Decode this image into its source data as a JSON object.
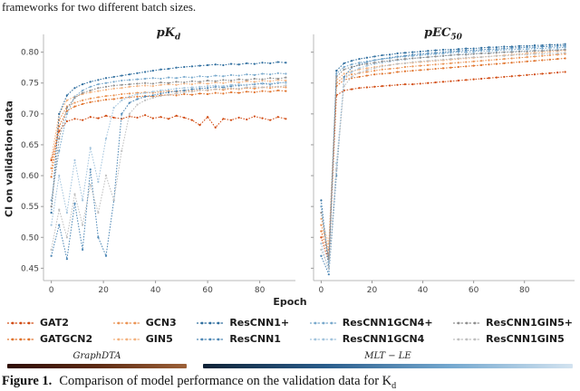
{
  "page": {
    "top_text": "frameworks for two different batch sizes.",
    "caption": {
      "label": "Figure 1.",
      "text": "Comparison of model performance on the validation data for K",
      "text_sub": "d"
    }
  },
  "groups": [
    {
      "name": "GraphDTA",
      "bar_colors": [
        "#2e0d04",
        "#9c6038"
      ]
    },
    {
      "name": "MLT − LE",
      "bar_colors": [
        "#0e2236",
        "#d3e3f0"
      ]
    }
  ],
  "chart_data": [
    {
      "type": "scatter",
      "title": "pK_d",
      "title_main": "pK",
      "title_sub": "d",
      "xlabel": "Epoch",
      "ylabel": "CI on validation data",
      "xlim": [
        -3,
        93
      ],
      "ylim": [
        0.43,
        0.82
      ],
      "xticks": [
        0,
        20,
        40,
        60,
        80
      ],
      "yticks": [
        0.45,
        0.5,
        0.55,
        0.6,
        0.65,
        0.7,
        0.75,
        0.8
      ],
      "grid": false,
      "legend_position": "bottom-outside",
      "x": [
        0,
        3,
        6,
        9,
        12,
        15,
        18,
        21,
        24,
        27,
        30,
        33,
        36,
        39,
        42,
        45,
        48,
        51,
        54,
        57,
        60,
        63,
        66,
        69,
        72,
        75,
        78,
        81,
        84,
        87,
        90
      ],
      "series": [
        {
          "name": "GAT2",
          "color": "#d14a10",
          "values": [
            0.625,
            0.672,
            0.688,
            0.692,
            0.69,
            0.695,
            0.693,
            0.697,
            0.694,
            0.692,
            0.696,
            0.694,
            0.698,
            0.693,
            0.695,
            0.692,
            0.697,
            0.694,
            0.69,
            0.682,
            0.695,
            0.678,
            0.692,
            0.69,
            0.694,
            0.691,
            0.696,
            0.693,
            0.69,
            0.695,
            0.692
          ]
        },
        {
          "name": "GATGCN2",
          "color": "#e0732c",
          "values": [
            0.598,
            0.68,
            0.705,
            0.712,
            0.716,
            0.719,
            0.721,
            0.723,
            0.724,
            0.726,
            0.727,
            0.728,
            0.729,
            0.728,
            0.73,
            0.731,
            0.73,
            0.732,
            0.731,
            0.733,
            0.732,
            0.734,
            0.733,
            0.735,
            0.734,
            0.736,
            0.735,
            0.737,
            0.736,
            0.738,
            0.737
          ]
        },
        {
          "name": "GCN3",
          "color": "#eb9455",
          "values": [
            0.612,
            0.69,
            0.712,
            0.718,
            0.722,
            0.725,
            0.727,
            0.729,
            0.73,
            0.732,
            0.733,
            0.734,
            0.735,
            0.734,
            0.736,
            0.737,
            0.736,
            0.738,
            0.737,
            0.739,
            0.738,
            0.74,
            0.739,
            0.741,
            0.74,
            0.742,
            0.741,
            0.743,
            0.742,
            0.744,
            0.743
          ]
        },
        {
          "name": "GIN5",
          "color": "#f3b27f",
          "values": [
            0.628,
            0.7,
            0.722,
            0.728,
            0.732,
            0.735,
            0.737,
            0.739,
            0.741,
            0.742,
            0.744,
            0.745,
            0.746,
            0.745,
            0.747,
            0.748,
            0.747,
            0.749,
            0.748,
            0.75,
            0.749,
            0.751,
            0.75,
            0.752,
            0.751,
            0.753,
            0.752,
            0.754,
            0.753,
            0.755,
            0.754
          ]
        },
        {
          "name": "ResCNN1+",
          "color": "#2e6d9e",
          "values": [
            0.54,
            0.7,
            0.73,
            0.742,
            0.748,
            0.752,
            0.755,
            0.758,
            0.76,
            0.762,
            0.764,
            0.766,
            0.768,
            0.77,
            0.772,
            0.773,
            0.775,
            0.776,
            0.777,
            0.778,
            0.779,
            0.78,
            0.779,
            0.781,
            0.78,
            0.782,
            0.781,
            0.783,
            0.782,
            0.784,
            0.783
          ]
        },
        {
          "name": "ResCNN1",
          "color": "#4d87b5",
          "values": [
            0.47,
            0.52,
            0.465,
            0.555,
            0.48,
            0.61,
            0.5,
            0.47,
            0.56,
            0.7,
            0.718,
            0.724,
            0.728,
            0.73,
            0.733,
            0.735,
            0.737,
            0.738,
            0.74,
            0.741,
            0.742,
            0.744,
            0.743,
            0.745,
            0.746,
            0.747,
            0.748,
            0.749,
            0.748,
            0.75,
            0.751
          ]
        },
        {
          "name": "ResCNN1GCN4+",
          "color": "#79a9cc",
          "values": [
            0.56,
            0.64,
            0.7,
            0.728,
            0.738,
            0.744,
            0.748,
            0.75,
            0.752,
            0.754,
            0.755,
            0.756,
            0.757,
            0.758,
            0.757,
            0.759,
            0.758,
            0.76,
            0.759,
            0.761,
            0.76,
            0.762,
            0.761,
            0.763,
            0.762,
            0.764,
            0.763,
            0.765,
            0.764,
            0.766,
            0.765
          ]
        },
        {
          "name": "ResCNN1GCN4",
          "color": "#a3c4dd",
          "values": [
            0.52,
            0.6,
            0.54,
            0.625,
            0.56,
            0.645,
            0.59,
            0.66,
            0.71,
            0.722,
            0.728,
            0.732,
            0.734,
            0.736,
            0.738,
            0.739,
            0.741,
            0.742,
            0.743,
            0.744,
            0.745,
            0.746,
            0.745,
            0.747,
            0.748,
            0.747,
            0.749,
            0.75,
            0.749,
            0.751,
            0.75
          ]
        },
        {
          "name": "ResCNN1GIN5+",
          "color": "#8f8f8f",
          "values": [
            0.55,
            0.66,
            0.71,
            0.726,
            0.734,
            0.738,
            0.742,
            0.744,
            0.746,
            0.747,
            0.748,
            0.749,
            0.75,
            0.749,
            0.751,
            0.75,
            0.752,
            0.751,
            0.753,
            0.752,
            0.754,
            0.753,
            0.755,
            0.754,
            0.756,
            0.755,
            0.757,
            0.756,
            0.758,
            0.757,
            0.759
          ]
        },
        {
          "name": "ResCNN1GIN5",
          "color": "#bfbfbf",
          "values": [
            0.48,
            0.545,
            0.5,
            0.57,
            0.52,
            0.585,
            0.54,
            0.6,
            0.56,
            0.64,
            0.7,
            0.715,
            0.722,
            0.726,
            0.729,
            0.731,
            0.733,
            0.735,
            0.736,
            0.738,
            0.739,
            0.74,
            0.741,
            0.742,
            0.741,
            0.743,
            0.744,
            0.743,
            0.745,
            0.744,
            0.746
          ]
        }
      ]
    },
    {
      "type": "scatter",
      "title": "pEC_50",
      "title_main": "pEC",
      "title_sub": "50",
      "xlabel": "Epoch",
      "ylabel": "CI on validation data",
      "xlim": [
        -3,
        99
      ],
      "ylim": [
        0.43,
        0.82
      ],
      "xticks": [
        0,
        20,
        40,
        60,
        80
      ],
      "yticks": [
        0.45,
        0.5,
        0.55,
        0.6,
        0.65,
        0.7,
        0.75,
        0.8
      ],
      "grid": false,
      "legend_position": "bottom-outside",
      "x": [
        0,
        3,
        6,
        9,
        12,
        15,
        18,
        21,
        24,
        27,
        30,
        33,
        36,
        39,
        42,
        45,
        48,
        51,
        54,
        57,
        60,
        63,
        66,
        69,
        72,
        75,
        78,
        81,
        84,
        87,
        90,
        93,
        96
      ],
      "series": [
        {
          "name": "GAT2",
          "color": "#d14a10",
          "values": [
            0.5,
            0.46,
            0.73,
            0.738,
            0.74,
            0.742,
            0.743,
            0.744,
            0.745,
            0.746,
            0.747,
            0.748,
            0.748,
            0.749,
            0.75,
            0.751,
            0.752,
            0.753,
            0.754,
            0.755,
            0.756,
            0.757,
            0.758,
            0.759,
            0.76,
            0.761,
            0.762,
            0.763,
            0.764,
            0.765,
            0.766,
            0.767,
            0.768
          ]
        },
        {
          "name": "GATGCN2",
          "color": "#e0732c",
          "values": [
            0.51,
            0.47,
            0.745,
            0.755,
            0.758,
            0.76,
            0.762,
            0.764,
            0.765,
            0.766,
            0.768,
            0.769,
            0.77,
            0.771,
            0.772,
            0.773,
            0.774,
            0.775,
            0.776,
            0.777,
            0.778,
            0.779,
            0.78,
            0.781,
            0.782,
            0.783,
            0.784,
            0.785,
            0.786,
            0.787,
            0.788,
            0.789,
            0.79
          ]
        },
        {
          "name": "GCN3",
          "color": "#eb9455",
          "values": [
            0.52,
            0.48,
            0.75,
            0.76,
            0.764,
            0.766,
            0.768,
            0.77,
            0.772,
            0.773,
            0.774,
            0.776,
            0.777,
            0.778,
            0.779,
            0.78,
            0.781,
            0.782,
            0.783,
            0.784,
            0.785,
            0.786,
            0.787,
            0.788,
            0.789,
            0.79,
            0.791,
            0.792,
            0.793,
            0.794,
            0.795,
            0.796,
            0.797
          ]
        },
        {
          "name": "GIN5",
          "color": "#f3b27f",
          "values": [
            0.53,
            0.49,
            0.755,
            0.765,
            0.769,
            0.772,
            0.774,
            0.776,
            0.778,
            0.779,
            0.781,
            0.782,
            0.783,
            0.784,
            0.785,
            0.786,
            0.787,
            0.788,
            0.789,
            0.79,
            0.791,
            0.792,
            0.793,
            0.794,
            0.795,
            0.796,
            0.797,
            0.798,
            0.799,
            0.8,
            0.801,
            0.802,
            0.803
          ]
        },
        {
          "name": "ResCNN1+",
          "color": "#2e6d9e",
          "values": [
            0.56,
            0.45,
            0.77,
            0.782,
            0.786,
            0.789,
            0.791,
            0.793,
            0.795,
            0.796,
            0.798,
            0.799,
            0.8,
            0.801,
            0.802,
            0.803,
            0.804,
            0.804,
            0.805,
            0.806,
            0.806,
            0.807,
            0.808,
            0.808,
            0.809,
            0.809,
            0.81,
            0.81,
            0.811,
            0.811,
            0.812,
            0.812,
            0.813
          ]
        },
        {
          "name": "ResCNN1",
          "color": "#4d87b5",
          "values": [
            0.47,
            0.44,
            0.6,
            0.76,
            0.775,
            0.78,
            0.784,
            0.787,
            0.789,
            0.791,
            0.793,
            0.794,
            0.796,
            0.797,
            0.798,
            0.799,
            0.8,
            0.801,
            0.802,
            0.803,
            0.803,
            0.804,
            0.805,
            0.805,
            0.806,
            0.807,
            0.807,
            0.808,
            0.808,
            0.809,
            0.809,
            0.81,
            0.81
          ]
        },
        {
          "name": "ResCNN1GCN4+",
          "color": "#79a9cc",
          "values": [
            0.55,
            0.46,
            0.765,
            0.776,
            0.78,
            0.783,
            0.785,
            0.787,
            0.789,
            0.79,
            0.792,
            0.793,
            0.794,
            0.795,
            0.796,
            0.797,
            0.798,
            0.799,
            0.8,
            0.8,
            0.801,
            0.802,
            0.802,
            0.803,
            0.804,
            0.804,
            0.805,
            0.805,
            0.806,
            0.806,
            0.807,
            0.807,
            0.808
          ]
        },
        {
          "name": "ResCNN1GCN4",
          "color": "#a3c4dd",
          "values": [
            0.49,
            0.445,
            0.62,
            0.755,
            0.768,
            0.774,
            0.778,
            0.781,
            0.783,
            0.785,
            0.787,
            0.788,
            0.79,
            0.791,
            0.792,
            0.793,
            0.794,
            0.795,
            0.796,
            0.797,
            0.798,
            0.798,
            0.799,
            0.8,
            0.8,
            0.801,
            0.802,
            0.802,
            0.803,
            0.803,
            0.804,
            0.804,
            0.805
          ]
        },
        {
          "name": "ResCNN1GIN5+",
          "color": "#8f8f8f",
          "values": [
            0.54,
            0.465,
            0.76,
            0.772,
            0.776,
            0.779,
            0.781,
            0.783,
            0.785,
            0.786,
            0.788,
            0.789,
            0.79,
            0.791,
            0.792,
            0.793,
            0.794,
            0.795,
            0.796,
            0.796,
            0.797,
            0.798,
            0.798,
            0.799,
            0.8,
            0.8,
            0.801,
            0.801,
            0.802,
            0.802,
            0.803,
            0.803,
            0.804
          ]
        },
        {
          "name": "ResCNN1GIN5",
          "color": "#bfbfbf",
          "values": [
            0.48,
            0.45,
            0.61,
            0.745,
            0.76,
            0.767,
            0.771,
            0.774,
            0.777,
            0.779,
            0.781,
            0.782,
            0.784,
            0.785,
            0.786,
            0.787,
            0.788,
            0.789,
            0.79,
            0.791,
            0.792,
            0.792,
            0.793,
            0.794,
            0.794,
            0.795,
            0.796,
            0.796,
            0.797,
            0.797,
            0.798,
            0.798,
            0.799
          ]
        }
      ]
    }
  ]
}
